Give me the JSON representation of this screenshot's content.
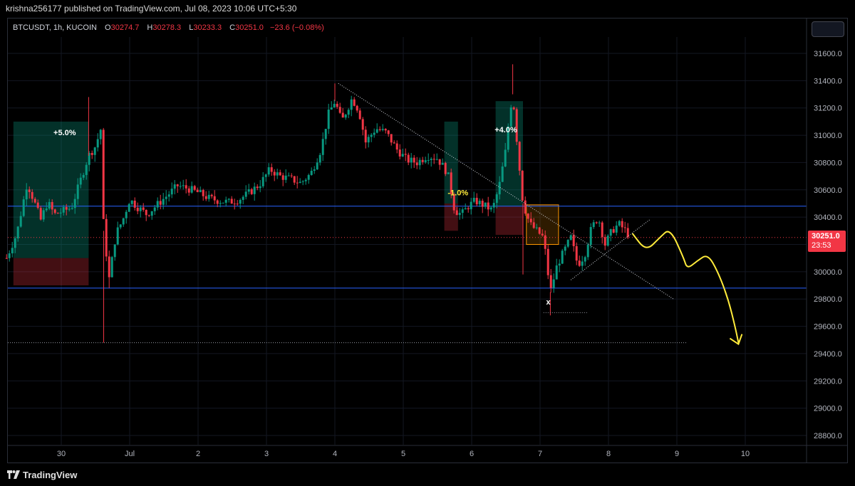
{
  "header": {
    "published": "krishna256177 published on TradingView.com, Jul 08, 2023 10:06 UTC+5:30"
  },
  "legend": {
    "symbol": "BTCUSDT, 1h, KUCOIN",
    "open_label": "O",
    "open": "30274.7",
    "high_label": "H",
    "high": "30278.3",
    "low_label": "L",
    "low": "30233.3",
    "close_label": "C",
    "close": "30251.0",
    "change": "−23.6 (−0.08%)"
  },
  "price_tag": {
    "price": "30251.0",
    "countdown": "23:53"
  },
  "brand": {
    "name": "TradingView"
  },
  "colors": {
    "up": "#089981",
    "down": "#f23645",
    "annotation": "#ffeb3b",
    "hline": "#2962ff",
    "box": "#ff9800"
  },
  "chart_data": {
    "type": "candlestick",
    "title": "",
    "xlabel": "",
    "ylabel": "",
    "ylim": [
      28700,
      31800
    ],
    "y_ticks": [
      31600,
      31400,
      31200,
      31000,
      30800,
      30600,
      30400,
      30200,
      30000,
      29800,
      29600,
      29400,
      29200,
      29000,
      28800
    ],
    "y_tick_labels": [
      "31600.0",
      "31400.0",
      "31200.0",
      "31000.0",
      "30800.0",
      "30600.0",
      "30400.0",
      "30200.0",
      "30000.0",
      "29800.0",
      "29600.0",
      "29400.0",
      "29200.0",
      "29000.0",
      "28800.0"
    ],
    "x_ticks": [
      "30",
      "Jul",
      "2",
      "3",
      "4",
      "5",
      "6",
      "7",
      "8",
      "9",
      "10"
    ],
    "x_tick_days": [
      0,
      1,
      2,
      3,
      4,
      5,
      6,
      7,
      8,
      9,
      10
    ],
    "price_path": [
      [
        -0.8,
        30100
      ],
      [
        -0.65,
        30280
      ],
      [
        -0.5,
        30650
      ],
      [
        -0.4,
        30520
      ],
      [
        -0.3,
        30380
      ],
      [
        -0.2,
        30510
      ],
      [
        -0.1,
        30420
      ],
      [
        0,
        30440
      ],
      [
        0.15,
        30470
      ],
      [
        0.3,
        30700
      ],
      [
        0.4,
        30850
      ],
      [
        0.5,
        30920
      ],
      [
        0.58,
        31050
      ],
      [
        0.62,
        30300
      ],
      [
        0.7,
        29950
      ],
      [
        0.8,
        30280
      ],
      [
        0.9,
        30380
      ],
      [
        1.0,
        30530
      ],
      [
        1.1,
        30480
      ],
      [
        1.25,
        30420
      ],
      [
        1.4,
        30490
      ],
      [
        1.55,
        30560
      ],
      [
        1.7,
        30630
      ],
      [
        1.85,
        30610
      ],
      [
        2.0,
        30580
      ],
      [
        2.15,
        30540
      ],
      [
        2.3,
        30520
      ],
      [
        2.45,
        30510
      ],
      [
        2.6,
        30530
      ],
      [
        2.75,
        30580
      ],
      [
        2.9,
        30640
      ],
      [
        3.05,
        30750
      ],
      [
        3.2,
        30700
      ],
      [
        3.35,
        30680
      ],
      [
        3.5,
        30650
      ],
      [
        3.65,
        30720
      ],
      [
        3.8,
        30900
      ],
      [
        3.9,
        31150
      ],
      [
        4.0,
        31250
      ],
      [
        4.1,
        31100
      ],
      [
        4.25,
        31270
      ],
      [
        4.35,
        31180
      ],
      [
        4.45,
        30950
      ],
      [
        4.6,
        31050
      ],
      [
        4.75,
        31020
      ],
      [
        4.9,
        30900
      ],
      [
        5.05,
        30820
      ],
      [
        5.2,
        30800
      ],
      [
        5.35,
        30850
      ],
      [
        5.5,
        30830
      ],
      [
        5.65,
        30720
      ],
      [
        5.75,
        30450
      ],
      [
        5.85,
        30420
      ],
      [
        5.95,
        30480
      ],
      [
        6.05,
        30520
      ],
      [
        6.2,
        30480
      ],
      [
        6.3,
        30450
      ],
      [
        6.4,
        30620
      ],
      [
        6.5,
        30900
      ],
      [
        6.55,
        31150
      ],
      [
        6.6,
        31300
      ],
      [
        6.68,
        30850
      ],
      [
        6.75,
        30500
      ],
      [
        6.85,
        30350
      ],
      [
        6.95,
        30300
      ],
      [
        7.05,
        30250
      ],
      [
        7.15,
        29850
      ],
      [
        7.25,
        30050
      ],
      [
        7.35,
        30150
      ],
      [
        7.45,
        30250
      ],
      [
        7.55,
        30050
      ],
      [
        7.65,
        30120
      ],
      [
        7.75,
        30320
      ],
      [
        7.85,
        30400
      ],
      [
        7.95,
        30200
      ],
      [
        8.05,
        30300
      ],
      [
        8.15,
        30350
      ],
      [
        8.25,
        30300
      ],
      [
        8.32,
        30251
      ]
    ],
    "lows": [
      [
        0.62,
        29480
      ],
      [
        7.15,
        29680
      ],
      [
        0.7,
        29880
      ],
      [
        6.75,
        29980
      ]
    ],
    "highs": [
      [
        6.6,
        31520
      ],
      [
        4.0,
        31380
      ],
      [
        0.4,
        31280
      ]
    ],
    "horizontal_lines": [
      30480,
      29880,
      29480
    ],
    "trendlines": [
      {
        "from": [
          4.05,
          31380
        ],
        "to": [
          8.95,
          29800
        ]
      },
      {
        "from": [
          7.45,
          29940
        ],
        "to": [
          8.6,
          30380
        ]
      }
    ],
    "annotations": [
      {
        "text": "+5.0%",
        "day": 0.05,
        "price": 31000
      },
      {
        "text": "+4.0%",
        "day": 6.5,
        "price": 31020
      },
      {
        "text": "-1.0%",
        "day": 5.8,
        "price": 30560
      },
      {
        "text": "x",
        "day": 7.12,
        "price": 29760
      }
    ],
    "positions": [
      {
        "day_from": -0.7,
        "day_to": 0.4,
        "profit_top": 31100,
        "entry": 30100,
        "stop": 29900
      },
      {
        "day_from": 5.6,
        "day_to": 5.8,
        "profit_top": 31100,
        "entry": 30500,
        "stop": 30300
      },
      {
        "day_from": 6.35,
        "day_to": 6.75,
        "profit_top": 31250,
        "entry": 30480,
        "stop": 30270
      }
    ],
    "box": {
      "day_from": 6.8,
      "day_to": 7.27,
      "price_top": 30490,
      "price_bottom": 30200
    },
    "forecast_path": [
      [
        8.35,
        30280
      ],
      [
        8.55,
        30150
      ],
      [
        8.75,
        30250
      ],
      [
        8.9,
        30320
      ],
      [
        9.1,
        30100
      ],
      [
        9.15,
        30020
      ],
      [
        9.3,
        30080
      ],
      [
        9.45,
        30130
      ],
      [
        9.6,
        30000
      ],
      [
        9.75,
        29800
      ],
      [
        9.85,
        29600
      ],
      [
        9.9,
        29480
      ]
    ],
    "last_price": 30251.0
  }
}
